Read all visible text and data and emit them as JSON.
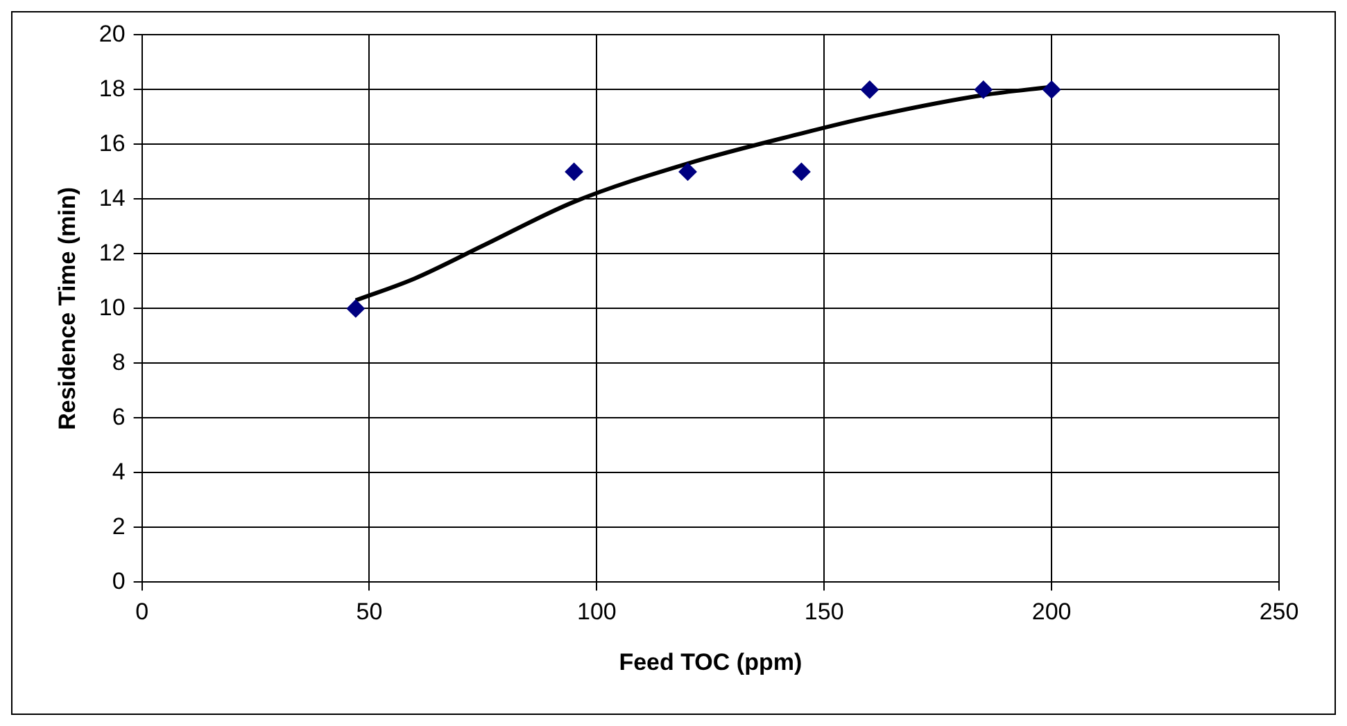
{
  "chart_data": {
    "type": "scatter",
    "xlabel": "Feed TOC (ppm)",
    "ylabel": "Residence Time (min)",
    "xlim": [
      0,
      250
    ],
    "xticks": [
      0,
      50,
      100,
      150,
      200,
      250
    ],
    "ylim": [
      0,
      20
    ],
    "yticks": [
      0,
      2,
      4,
      6,
      8,
      10,
      12,
      14,
      16,
      18,
      20
    ],
    "grid": true,
    "legend": false,
    "marker": "diamond",
    "series": [
      {
        "color": "#000080",
        "x": [
          47,
          95,
          120,
          145,
          160,
          185,
          200
        ],
        "values": [
          10,
          15,
          15,
          15,
          18,
          18,
          18
        ]
      },
      {
        "type": "line",
        "color": "#000000",
        "marker": "none",
        "x": [
          47,
          60,
          75,
          95,
          120,
          145,
          160,
          185,
          200
        ],
        "values": [
          10.3,
          11.1,
          12.3,
          13.9,
          15.3,
          16.4,
          17.0,
          17.8,
          18.1
        ]
      }
    ]
  }
}
